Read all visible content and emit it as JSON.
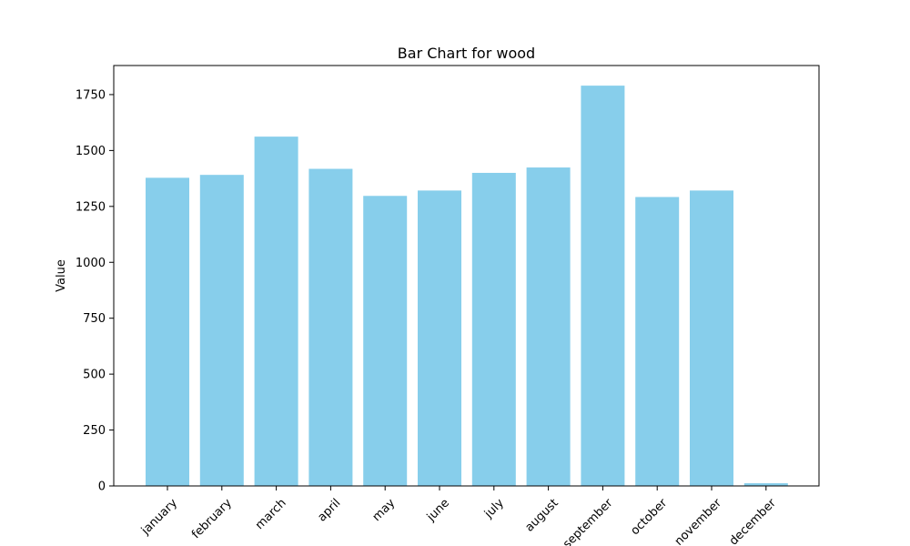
{
  "chart_data": {
    "type": "bar",
    "title": "Bar Chart for wood",
    "xlabel": "",
    "ylabel": "Value",
    "categories": [
      "january",
      "february",
      "march",
      "april",
      "may",
      "june",
      "july",
      "august",
      "september",
      "october",
      "november",
      "december"
    ],
    "values": [
      1378,
      1391,
      1562,
      1418,
      1297,
      1321,
      1400,
      1424,
      1790,
      1292,
      1321,
      12
    ],
    "ylim": [
      0,
      1880
    ],
    "yticks": [
      0,
      250,
      500,
      750,
      1000,
      1250,
      1500,
      1750
    ],
    "bar_color": "#87ceeb",
    "grid": false
  }
}
